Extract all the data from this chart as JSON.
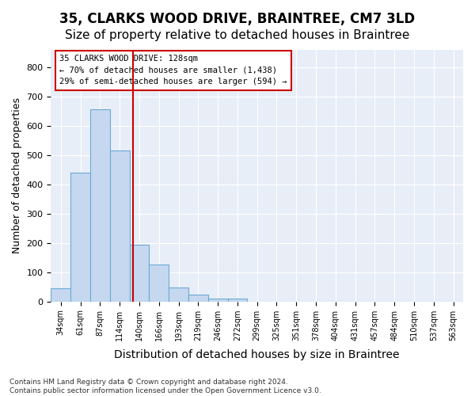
{
  "title": "35, CLARKS WOOD DRIVE, BRAINTREE, CM7 3LD",
  "subtitle": "Size of property relative to detached houses in Braintree",
  "xlabel": "Distribution of detached houses by size in Braintree",
  "ylabel": "Number of detached properties",
  "bin_labels": [
    "34sqm",
    "61sqm",
    "87sqm",
    "114sqm",
    "140sqm",
    "166sqm",
    "193sqm",
    "219sqm",
    "246sqm",
    "272sqm",
    "299sqm",
    "325sqm",
    "351sqm",
    "378sqm",
    "404sqm",
    "431sqm",
    "457sqm",
    "484sqm",
    "510sqm",
    "537sqm",
    "563sqm"
  ],
  "bar_values": [
    45,
    440,
    655,
    515,
    193,
    125,
    47,
    23,
    10,
    10,
    0,
    0,
    0,
    0,
    0,
    0,
    0,
    0,
    0,
    0,
    0
  ],
  "bar_color": "#c5d8f0",
  "bar_edge_color": "#6aaad4",
  "vline_x": 3.67,
  "vline_color": "#cc0000",
  "annotation_text": "35 CLARKS WOOD DRIVE: 128sqm\n← 70% of detached houses are smaller (1,438)\n29% of semi-detached houses are larger (594) →",
  "annotation_box_color": "#ffffff",
  "annotation_box_edge_color": "#cc0000",
  "ylim": [
    0,
    860
  ],
  "yticks": [
    0,
    100,
    200,
    300,
    400,
    500,
    600,
    700,
    800
  ],
  "bg_color": "#e8eef7",
  "grid_color": "#ffffff",
  "footer": "Contains HM Land Registry data © Crown copyright and database right 2024.\nContains public sector information licensed under the Open Government Licence v3.0.",
  "title_fontsize": 12,
  "subtitle_fontsize": 11,
  "ylabel_fontsize": 9,
  "xlabel_fontsize": 10
}
